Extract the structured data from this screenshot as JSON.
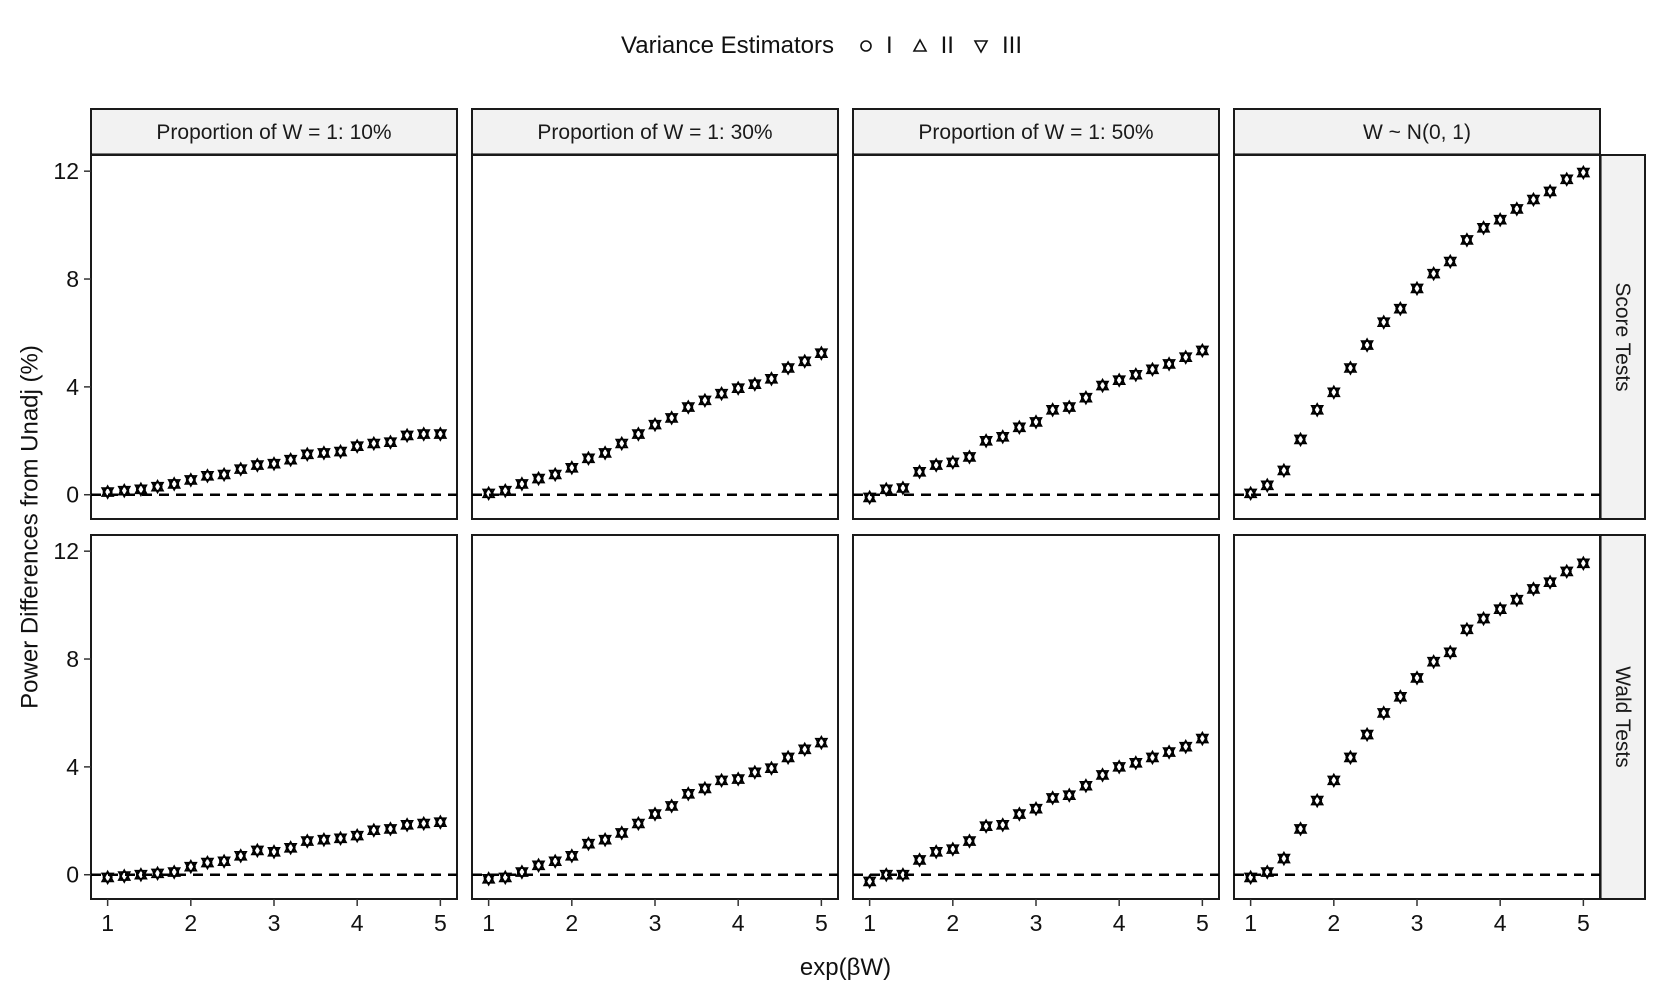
{
  "legend": {
    "title": "Variance Estimators",
    "items": [
      {
        "label": "I",
        "shape": "circle"
      },
      {
        "label": "II",
        "shape": "triangle-up"
      },
      {
        "label": "III",
        "shape": "triangle-down"
      }
    ]
  },
  "chart_data": {
    "type": "scatter",
    "facet_columns": [
      "Proportion of W = 1: 10%",
      "Proportion of W = 1: 30%",
      "Proportion of W = 1: 50%",
      "W ~ N(0, 1)"
    ],
    "facet_rows": [
      "Score Tests",
      "Wald Tests"
    ],
    "xlabel": "exp(βW)",
    "ylabel": "Power Differences from Unadj (%)",
    "xlim": [
      0.8,
      5.2
    ],
    "ylim": [
      -0.9,
      12.6
    ],
    "x_ticks": [
      "1",
      "2",
      "3",
      "4",
      "5"
    ],
    "y_ticks": [
      "0",
      "4",
      "8",
      "12"
    ],
    "reference_line": {
      "y": 0,
      "style": "dashed"
    },
    "x": [
      1.0,
      1.2,
      1.4,
      1.6,
      1.8,
      2.0,
      2.2,
      2.4,
      2.6,
      2.8,
      3.0,
      3.2,
      3.4,
      3.6,
      3.8,
      4.0,
      4.2,
      4.4,
      4.6,
      4.8,
      5.0
    ],
    "panels": [
      {
        "row": "Score Tests",
        "column": "Proportion of W = 1: 10%",
        "series": [
          {
            "name": "I",
            "values": [
              0.1,
              0.15,
              0.2,
              0.3,
              0.4,
              0.55,
              0.7,
              0.75,
              0.95,
              1.1,
              1.15,
              1.3,
              1.5,
              1.55,
              1.6,
              1.8,
              1.9,
              1.95,
              2.2,
              2.25,
              2.25
            ]
          },
          {
            "name": "II",
            "values": [
              0.1,
              0.15,
              0.2,
              0.3,
              0.4,
              0.55,
              0.7,
              0.75,
              0.95,
              1.1,
              1.15,
              1.3,
              1.5,
              1.55,
              1.6,
              1.8,
              1.9,
              1.95,
              2.2,
              2.25,
              2.25
            ]
          },
          {
            "name": "III",
            "values": [
              0.1,
              0.15,
              0.2,
              0.3,
              0.4,
              0.55,
              0.7,
              0.75,
              0.95,
              1.1,
              1.15,
              1.3,
              1.5,
              1.55,
              1.6,
              1.8,
              1.9,
              1.95,
              2.2,
              2.25,
              2.25
            ]
          }
        ]
      },
      {
        "row": "Score Tests",
        "column": "Proportion of W = 1: 30%",
        "series": [
          {
            "name": "I",
            "values": [
              0.05,
              0.15,
              0.4,
              0.6,
              0.75,
              1.0,
              1.35,
              1.55,
              1.9,
              2.25,
              2.6,
              2.85,
              3.25,
              3.5,
              3.75,
              3.95,
              4.1,
              4.3,
              4.7,
              4.95,
              5.25
            ]
          },
          {
            "name": "II",
            "values": [
              0.05,
              0.15,
              0.4,
              0.6,
              0.75,
              1.0,
              1.35,
              1.55,
              1.9,
              2.25,
              2.6,
              2.85,
              3.25,
              3.5,
              3.75,
              3.95,
              4.1,
              4.3,
              4.7,
              4.95,
              5.25
            ]
          },
          {
            "name": "III",
            "values": [
              0.05,
              0.15,
              0.4,
              0.6,
              0.75,
              1.0,
              1.35,
              1.55,
              1.9,
              2.25,
              2.6,
              2.85,
              3.25,
              3.5,
              3.75,
              3.95,
              4.1,
              4.3,
              4.7,
              4.95,
              5.25
            ]
          }
        ]
      },
      {
        "row": "Score Tests",
        "column": "Proportion of W = 1: 50%",
        "series": [
          {
            "name": "I",
            "values": [
              -0.1,
              0.2,
              0.25,
              0.85,
              1.1,
              1.2,
              1.4,
              2.0,
              2.15,
              2.5,
              2.7,
              3.15,
              3.25,
              3.6,
              4.05,
              4.25,
              4.45,
              4.65,
              4.85,
              5.1,
              5.35
            ]
          },
          {
            "name": "II",
            "values": [
              -0.1,
              0.2,
              0.25,
              0.85,
              1.1,
              1.2,
              1.4,
              2.0,
              2.15,
              2.5,
              2.7,
              3.15,
              3.25,
              3.6,
              4.05,
              4.25,
              4.45,
              4.65,
              4.85,
              5.1,
              5.35
            ]
          },
          {
            "name": "III",
            "values": [
              -0.1,
              0.2,
              0.25,
              0.85,
              1.1,
              1.2,
              1.4,
              2.0,
              2.15,
              2.5,
              2.7,
              3.15,
              3.25,
              3.6,
              4.05,
              4.25,
              4.45,
              4.65,
              4.85,
              5.1,
              5.35
            ]
          }
        ]
      },
      {
        "row": "Score Tests",
        "column": "W ~ N(0, 1)",
        "series": [
          {
            "name": "I",
            "values": [
              0.05,
              0.35,
              0.9,
              2.05,
              3.15,
              3.8,
              4.7,
              5.55,
              6.4,
              6.9,
              7.65,
              8.2,
              8.65,
              9.45,
              9.9,
              10.2,
              10.6,
              10.95,
              11.25,
              11.7,
              11.95
            ]
          },
          {
            "name": "II",
            "values": [
              0.05,
              0.35,
              0.9,
              2.05,
              3.15,
              3.8,
              4.7,
              5.55,
              6.4,
              6.9,
              7.65,
              8.2,
              8.65,
              9.45,
              9.9,
              10.2,
              10.6,
              10.95,
              11.25,
              11.7,
              11.95
            ]
          },
          {
            "name": "III",
            "values": [
              0.05,
              0.35,
              0.9,
              2.05,
              3.15,
              3.8,
              4.7,
              5.55,
              6.4,
              6.9,
              7.65,
              8.2,
              8.65,
              9.45,
              9.9,
              10.2,
              10.6,
              10.95,
              11.25,
              11.7,
              11.95
            ]
          }
        ]
      },
      {
        "row": "Wald Tests",
        "column": "Proportion of W = 1: 10%",
        "series": [
          {
            "name": "I",
            "values": [
              -0.1,
              -0.05,
              0.0,
              0.05,
              0.1,
              0.3,
              0.45,
              0.5,
              0.7,
              0.9,
              0.85,
              1.0,
              1.25,
              1.3,
              1.35,
              1.45,
              1.65,
              1.7,
              1.85,
              1.9,
              1.95
            ]
          },
          {
            "name": "II",
            "values": [
              -0.1,
              -0.05,
              0.0,
              0.05,
              0.1,
              0.3,
              0.45,
              0.5,
              0.7,
              0.9,
              0.85,
              1.0,
              1.25,
              1.3,
              1.35,
              1.45,
              1.65,
              1.7,
              1.85,
              1.9,
              1.95
            ]
          },
          {
            "name": "III",
            "values": [
              -0.1,
              -0.05,
              0.0,
              0.05,
              0.1,
              0.3,
              0.45,
              0.5,
              0.7,
              0.9,
              0.85,
              1.0,
              1.25,
              1.3,
              1.35,
              1.45,
              1.65,
              1.7,
              1.85,
              1.9,
              1.95
            ]
          }
        ]
      },
      {
        "row": "Wald Tests",
        "column": "Proportion of W = 1: 30%",
        "series": [
          {
            "name": "I",
            "values": [
              -0.15,
              -0.1,
              0.1,
              0.35,
              0.5,
              0.7,
              1.15,
              1.3,
              1.55,
              1.9,
              2.25,
              2.55,
              3.0,
              3.2,
              3.5,
              3.55,
              3.8,
              3.95,
              4.35,
              4.65,
              4.9
            ]
          },
          {
            "name": "II",
            "values": [
              -0.15,
              -0.1,
              0.1,
              0.35,
              0.5,
              0.7,
              1.15,
              1.3,
              1.55,
              1.9,
              2.25,
              2.55,
              3.0,
              3.2,
              3.5,
              3.55,
              3.8,
              3.95,
              4.35,
              4.65,
              4.9
            ]
          },
          {
            "name": "III",
            "values": [
              -0.15,
              -0.1,
              0.1,
              0.35,
              0.5,
              0.7,
              1.15,
              1.3,
              1.55,
              1.9,
              2.25,
              2.55,
              3.0,
              3.2,
              3.5,
              3.55,
              3.8,
              3.95,
              4.35,
              4.65,
              4.9
            ]
          }
        ]
      },
      {
        "row": "Wald Tests",
        "column": "Proportion of W = 1: 50%",
        "series": [
          {
            "name": "I",
            "values": [
              -0.25,
              0.0,
              0.0,
              0.55,
              0.85,
              0.95,
              1.25,
              1.8,
              1.85,
              2.25,
              2.45,
              2.85,
              2.95,
              3.3,
              3.7,
              4.0,
              4.15,
              4.35,
              4.55,
              4.75,
              5.05
            ]
          },
          {
            "name": "II",
            "values": [
              -0.25,
              0.0,
              0.0,
              0.55,
              0.85,
              0.95,
              1.25,
              1.8,
              1.85,
              2.25,
              2.45,
              2.85,
              2.95,
              3.3,
              3.7,
              4.0,
              4.15,
              4.35,
              4.55,
              4.75,
              5.05
            ]
          },
          {
            "name": "III",
            "values": [
              -0.25,
              0.0,
              0.0,
              0.55,
              0.85,
              0.95,
              1.25,
              1.8,
              1.85,
              2.25,
              2.45,
              2.85,
              2.95,
              3.3,
              3.7,
              4.0,
              4.15,
              4.35,
              4.55,
              4.75,
              5.05
            ]
          }
        ]
      },
      {
        "row": "Wald Tests",
        "column": "W ~ N(0, 1)",
        "series": [
          {
            "name": "I",
            "values": [
              -0.1,
              0.1,
              0.6,
              1.7,
              2.75,
              3.5,
              4.35,
              5.2,
              6.0,
              6.6,
              7.3,
              7.9,
              8.25,
              9.1,
              9.5,
              9.85,
              10.2,
              10.6,
              10.85,
              11.25,
              11.55
            ]
          },
          {
            "name": "II",
            "values": [
              -0.1,
              0.1,
              0.6,
              1.7,
              2.75,
              3.5,
              4.35,
              5.2,
              6.0,
              6.6,
              7.3,
              7.9,
              8.25,
              9.1,
              9.5,
              9.85,
              10.2,
              10.6,
              10.85,
              11.25,
              11.55
            ]
          },
          {
            "name": "III",
            "values": [
              -0.1,
              0.1,
              0.6,
              1.7,
              2.75,
              3.5,
              4.35,
              5.2,
              6.0,
              6.6,
              7.3,
              7.9,
              8.25,
              9.1,
              9.5,
              9.85,
              10.2,
              10.6,
              10.85,
              11.25,
              11.55
            ]
          }
        ]
      }
    ],
    "colors": {
      "points": "#000000",
      "strip_fill": "#f2f2f2",
      "panel_border": "#1a1a1a"
    }
  }
}
